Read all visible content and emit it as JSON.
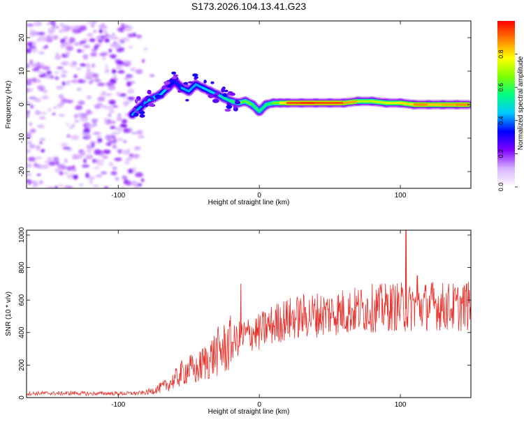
{
  "title": "S173.2026.104.13.41.G23",
  "chart_data": [
    {
      "type": "heatmap",
      "name": "spectrogram",
      "xlabel": "Height of straight line (km)",
      "ylabel": "Frequency (Hz)",
      "xlim": [
        -165,
        150
      ],
      "ylim": [
        -25,
        25
      ],
      "xticks": [
        -100,
        0,
        100
      ],
      "xtick_labels": [
        "-100",
        "0",
        "100"
      ],
      "yticks": [
        -20,
        -10,
        0,
        10,
        20
      ],
      "ytick_labels": [
        "-20",
        "-10",
        "0",
        "10",
        "20"
      ],
      "noise_region_x": [
        -165,
        -80
      ],
      "signal_track": [
        {
          "x": -90,
          "y": -3,
          "amp": 0.45
        },
        {
          "x": -85,
          "y": -1,
          "amp": 0.4
        },
        {
          "x": -80,
          "y": 1,
          "amp": 0.45
        },
        {
          "x": -75,
          "y": 2,
          "amp": 0.5
        },
        {
          "x": -70,
          "y": 3,
          "amp": 0.55
        },
        {
          "x": -65,
          "y": 5,
          "amp": 0.35
        },
        {
          "x": -60,
          "y": 7,
          "amp": 0.3
        },
        {
          "x": -55,
          "y": 5,
          "amp": 0.4
        },
        {
          "x": -50,
          "y": 4,
          "amp": 0.45
        },
        {
          "x": -45,
          "y": 6,
          "amp": 0.4
        },
        {
          "x": -40,
          "y": 5,
          "amp": 0.45
        },
        {
          "x": -35,
          "y": 4,
          "amp": 0.45
        },
        {
          "x": -30,
          "y": 3,
          "amp": 0.5
        },
        {
          "x": -25,
          "y": 2,
          "amp": 0.5
        },
        {
          "x": -20,
          "y": 1,
          "amp": 0.55
        },
        {
          "x": -15,
          "y": 0.5,
          "amp": 0.6
        },
        {
          "x": -10,
          "y": 1,
          "amp": 0.65
        },
        {
          "x": -5,
          "y": 0,
          "amp": 0.6
        },
        {
          "x": 0,
          "y": -2,
          "amp": 0.55
        },
        {
          "x": 5,
          "y": 0,
          "amp": 0.55
        },
        {
          "x": 10,
          "y": 0.5,
          "amp": 0.6
        },
        {
          "x": 15,
          "y": 0.5,
          "amp": 0.7
        },
        {
          "x": 20,
          "y": 0.5,
          "amp": 0.9
        },
        {
          "x": 30,
          "y": 0.5,
          "amp": 0.95
        },
        {
          "x": 40,
          "y": 0.5,
          "amp": 0.95
        },
        {
          "x": 50,
          "y": 0.5,
          "amp": 0.9
        },
        {
          "x": 60,
          "y": 0.5,
          "amp": 0.95
        },
        {
          "x": 70,
          "y": 1,
          "amp": 0.75
        },
        {
          "x": 80,
          "y": 1,
          "amp": 0.65
        },
        {
          "x": 90,
          "y": 0.5,
          "amp": 0.8
        },
        {
          "x": 100,
          "y": 0.5,
          "amp": 0.7
        },
        {
          "x": 110,
          "y": 0,
          "amp": 0.9
        },
        {
          "x": 120,
          "y": 0,
          "amp": 0.85
        },
        {
          "x": 130,
          "y": 0,
          "amp": 0.8
        },
        {
          "x": 140,
          "y": 0,
          "amp": 0.9
        },
        {
          "x": 148,
          "y": 0,
          "amp": 0.85
        }
      ],
      "colorbar": {
        "label": "Normalized spectral amplitude",
        "range": [
          0,
          1
        ],
        "ticks": [
          0.0,
          0.2,
          0.4,
          0.6,
          0.8
        ],
        "tick_labels": [
          "0.0",
          "0.2",
          "0.4",
          "0.6",
          "0.8"
        ],
        "colors": [
          "#ffffff",
          "#d9b3ff",
          "#8000ff",
          "#0000ff",
          "#00c8ff",
          "#00ff80",
          "#80ff00",
          "#ffff00",
          "#ff8000",
          "#ff0000"
        ]
      }
    },
    {
      "type": "line",
      "name": "snr",
      "xlabel": "Height of straight line (km)",
      "ylabel": "SNR (10 * v/v)",
      "xlim": [
        -165,
        150
      ],
      "ylim": [
        0,
        1030
      ],
      "xticks": [
        -100,
        0,
        100
      ],
      "xtick_labels": [
        "-100",
        "0",
        "100"
      ],
      "yticks": [
        0,
        200,
        400,
        600,
        800,
        1000
      ],
      "ytick_labels": [
        "0",
        "200",
        "400",
        "600",
        "800",
        "1000"
      ],
      "color": "#e8302a",
      "x": [
        -165,
        -150,
        -140,
        -130,
        -120,
        -110,
        -100,
        -90,
        -85,
        -80,
        -75,
        -70,
        -65,
        -60,
        -55,
        -50,
        -45,
        -40,
        -35,
        -30,
        -25,
        -20,
        -15,
        -10,
        -5,
        0,
        5,
        10,
        15,
        20,
        25,
        30,
        35,
        40,
        45,
        50,
        55,
        60,
        65,
        70,
        75,
        80,
        85,
        90,
        95,
        100,
        105,
        110,
        115,
        120,
        125,
        130,
        135,
        140,
        145,
        150
      ],
      "y": [
        25,
        27,
        25,
        28,
        24,
        26,
        25,
        26,
        28,
        30,
        45,
        60,
        80,
        110,
        150,
        180,
        160,
        210,
        240,
        280,
        300,
        330,
        360,
        380,
        400,
        400,
        430,
        450,
        470,
        480,
        490,
        500,
        505,
        510,
        515,
        520,
        525,
        530,
        530,
        540,
        545,
        550,
        550,
        555,
        560,
        560,
        540,
        570,
        560,
        565,
        570,
        560,
        560,
        555,
        560,
        560
      ],
      "spikes": [
        {
          "x": -13,
          "y": 700
        },
        {
          "x": 104,
          "y": 1030
        },
        {
          "x": 112,
          "y": 750
        },
        {
          "x": 147,
          "y": 700
        }
      ]
    }
  ]
}
